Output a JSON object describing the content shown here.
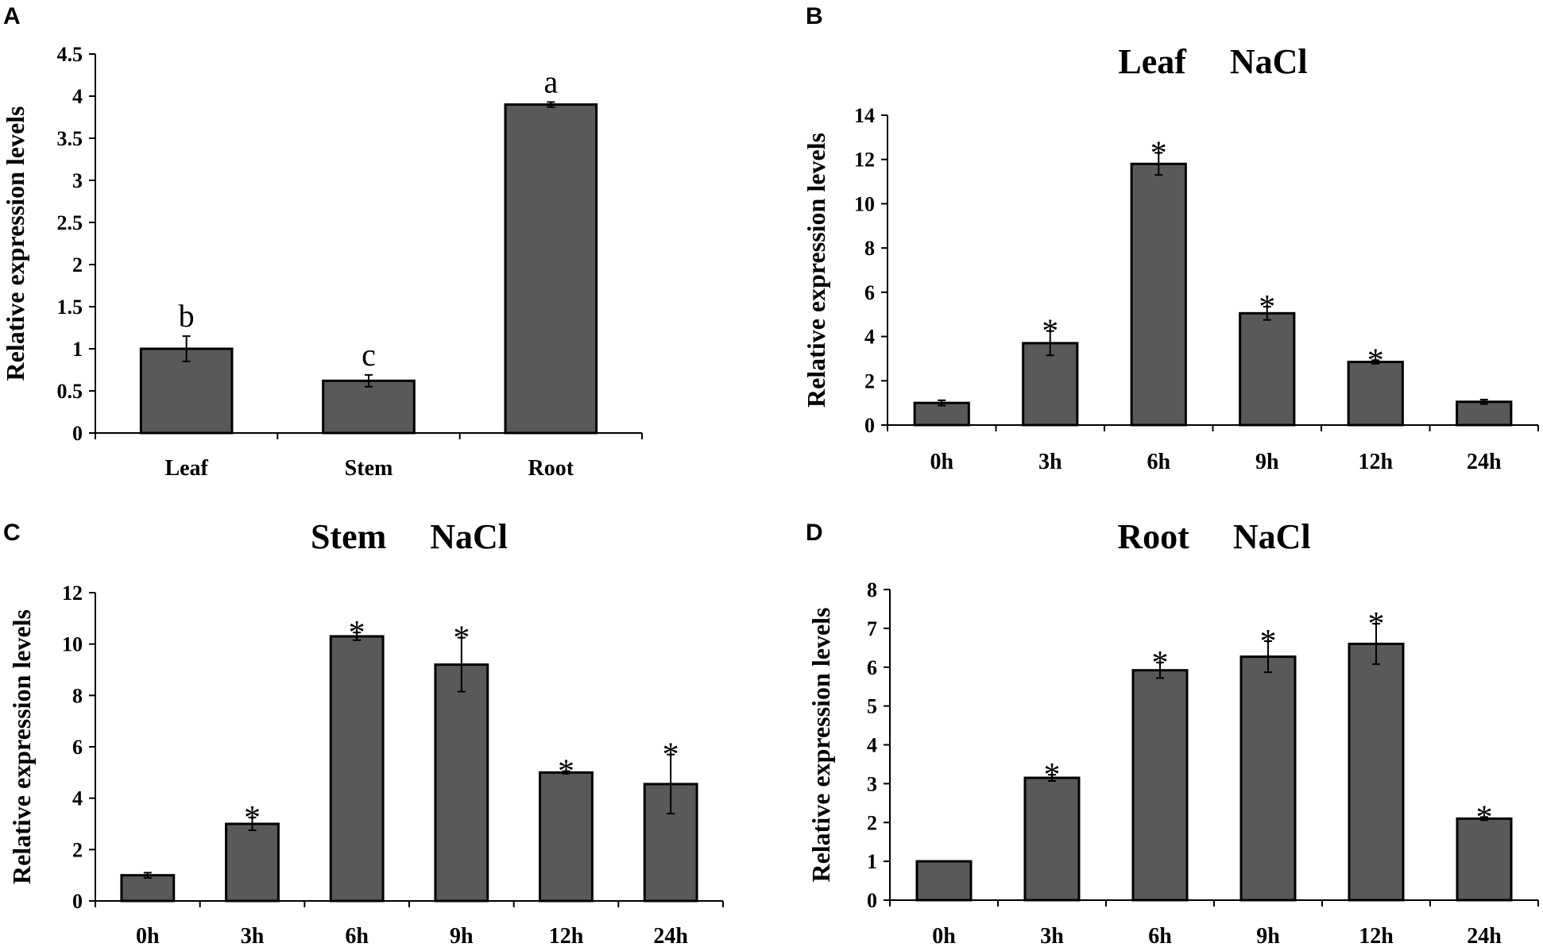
{
  "chart_data": [
    {
      "panel": "A",
      "type": "bar",
      "title": "",
      "xlabel": "",
      "ylabel": "Relative expression levels",
      "ylim": [
        0,
        4.5
      ],
      "yticks": [
        "0",
        "0.5",
        "1",
        "1.5",
        "2",
        "2.5",
        "3",
        "3.5",
        "4",
        "4.5"
      ],
      "categories": [
        "Leaf",
        "Stem",
        "Root"
      ],
      "values": [
        1.0,
        0.62,
        3.9
      ],
      "errors": [
        0.15,
        0.07,
        0.03
      ],
      "annotations": [
        "b",
        "c",
        "a"
      ]
    },
    {
      "panel": "B",
      "type": "bar",
      "title": "Leaf     NaCl",
      "xlabel": "",
      "ylabel": "Relative expression levels",
      "ylim": [
        0,
        14
      ],
      "yticks": [
        "0",
        "2",
        "4",
        "6",
        "8",
        "10",
        "12",
        "14"
      ],
      "categories": [
        "0h",
        "3h",
        "6h",
        "9h",
        "12h",
        "24h"
      ],
      "values": [
        1.0,
        3.7,
        11.8,
        5.05,
        2.85,
        1.05
      ],
      "errors": [
        0.12,
        0.55,
        0.5,
        0.3,
        0.08,
        0.1
      ],
      "annotations": [
        "",
        "*",
        "*",
        "*",
        "*",
        ""
      ]
    },
    {
      "panel": "C",
      "type": "bar",
      "title": "Stem     NaCl",
      "xlabel": "",
      "ylabel": "Relative expression levels",
      "ylim": [
        0,
        12
      ],
      "yticks": [
        "0",
        "2",
        "4",
        "6",
        "8",
        "10",
        "12"
      ],
      "categories": [
        "0h",
        "3h",
        "6h",
        "9h",
        "12h",
        "24h"
      ],
      "values": [
        1.0,
        3.0,
        10.3,
        9.2,
        5.0,
        4.55
      ],
      "errors": [
        0.1,
        0.25,
        0.15,
        1.05,
        0.05,
        1.15
      ],
      "annotations": [
        "",
        "*",
        "*",
        "*",
        "*",
        "*"
      ]
    },
    {
      "panel": "D",
      "type": "bar",
      "title": "Root     NaCl",
      "xlabel": "",
      "ylabel": "Relative expression levels",
      "ylim": [
        0,
        8
      ],
      "yticks": [
        "0",
        "1",
        "2",
        "3",
        "4",
        "5",
        "6",
        "7",
        "8"
      ],
      "categories": [
        "0h",
        "3h",
        "6h",
        "9h",
        "12h",
        "24h"
      ],
      "values": [
        1.0,
        3.15,
        5.92,
        6.27,
        6.6,
        2.1
      ],
      "errors": [
        0.0,
        0.08,
        0.2,
        0.4,
        0.52,
        0.04
      ],
      "annotations": [
        "",
        "*",
        "*",
        "*",
        "*",
        "*"
      ]
    }
  ],
  "colors": {
    "bar_fill": "#595959",
    "bar_stroke": "#000000",
    "axis": "#000000",
    "background": "#ffffff"
  }
}
